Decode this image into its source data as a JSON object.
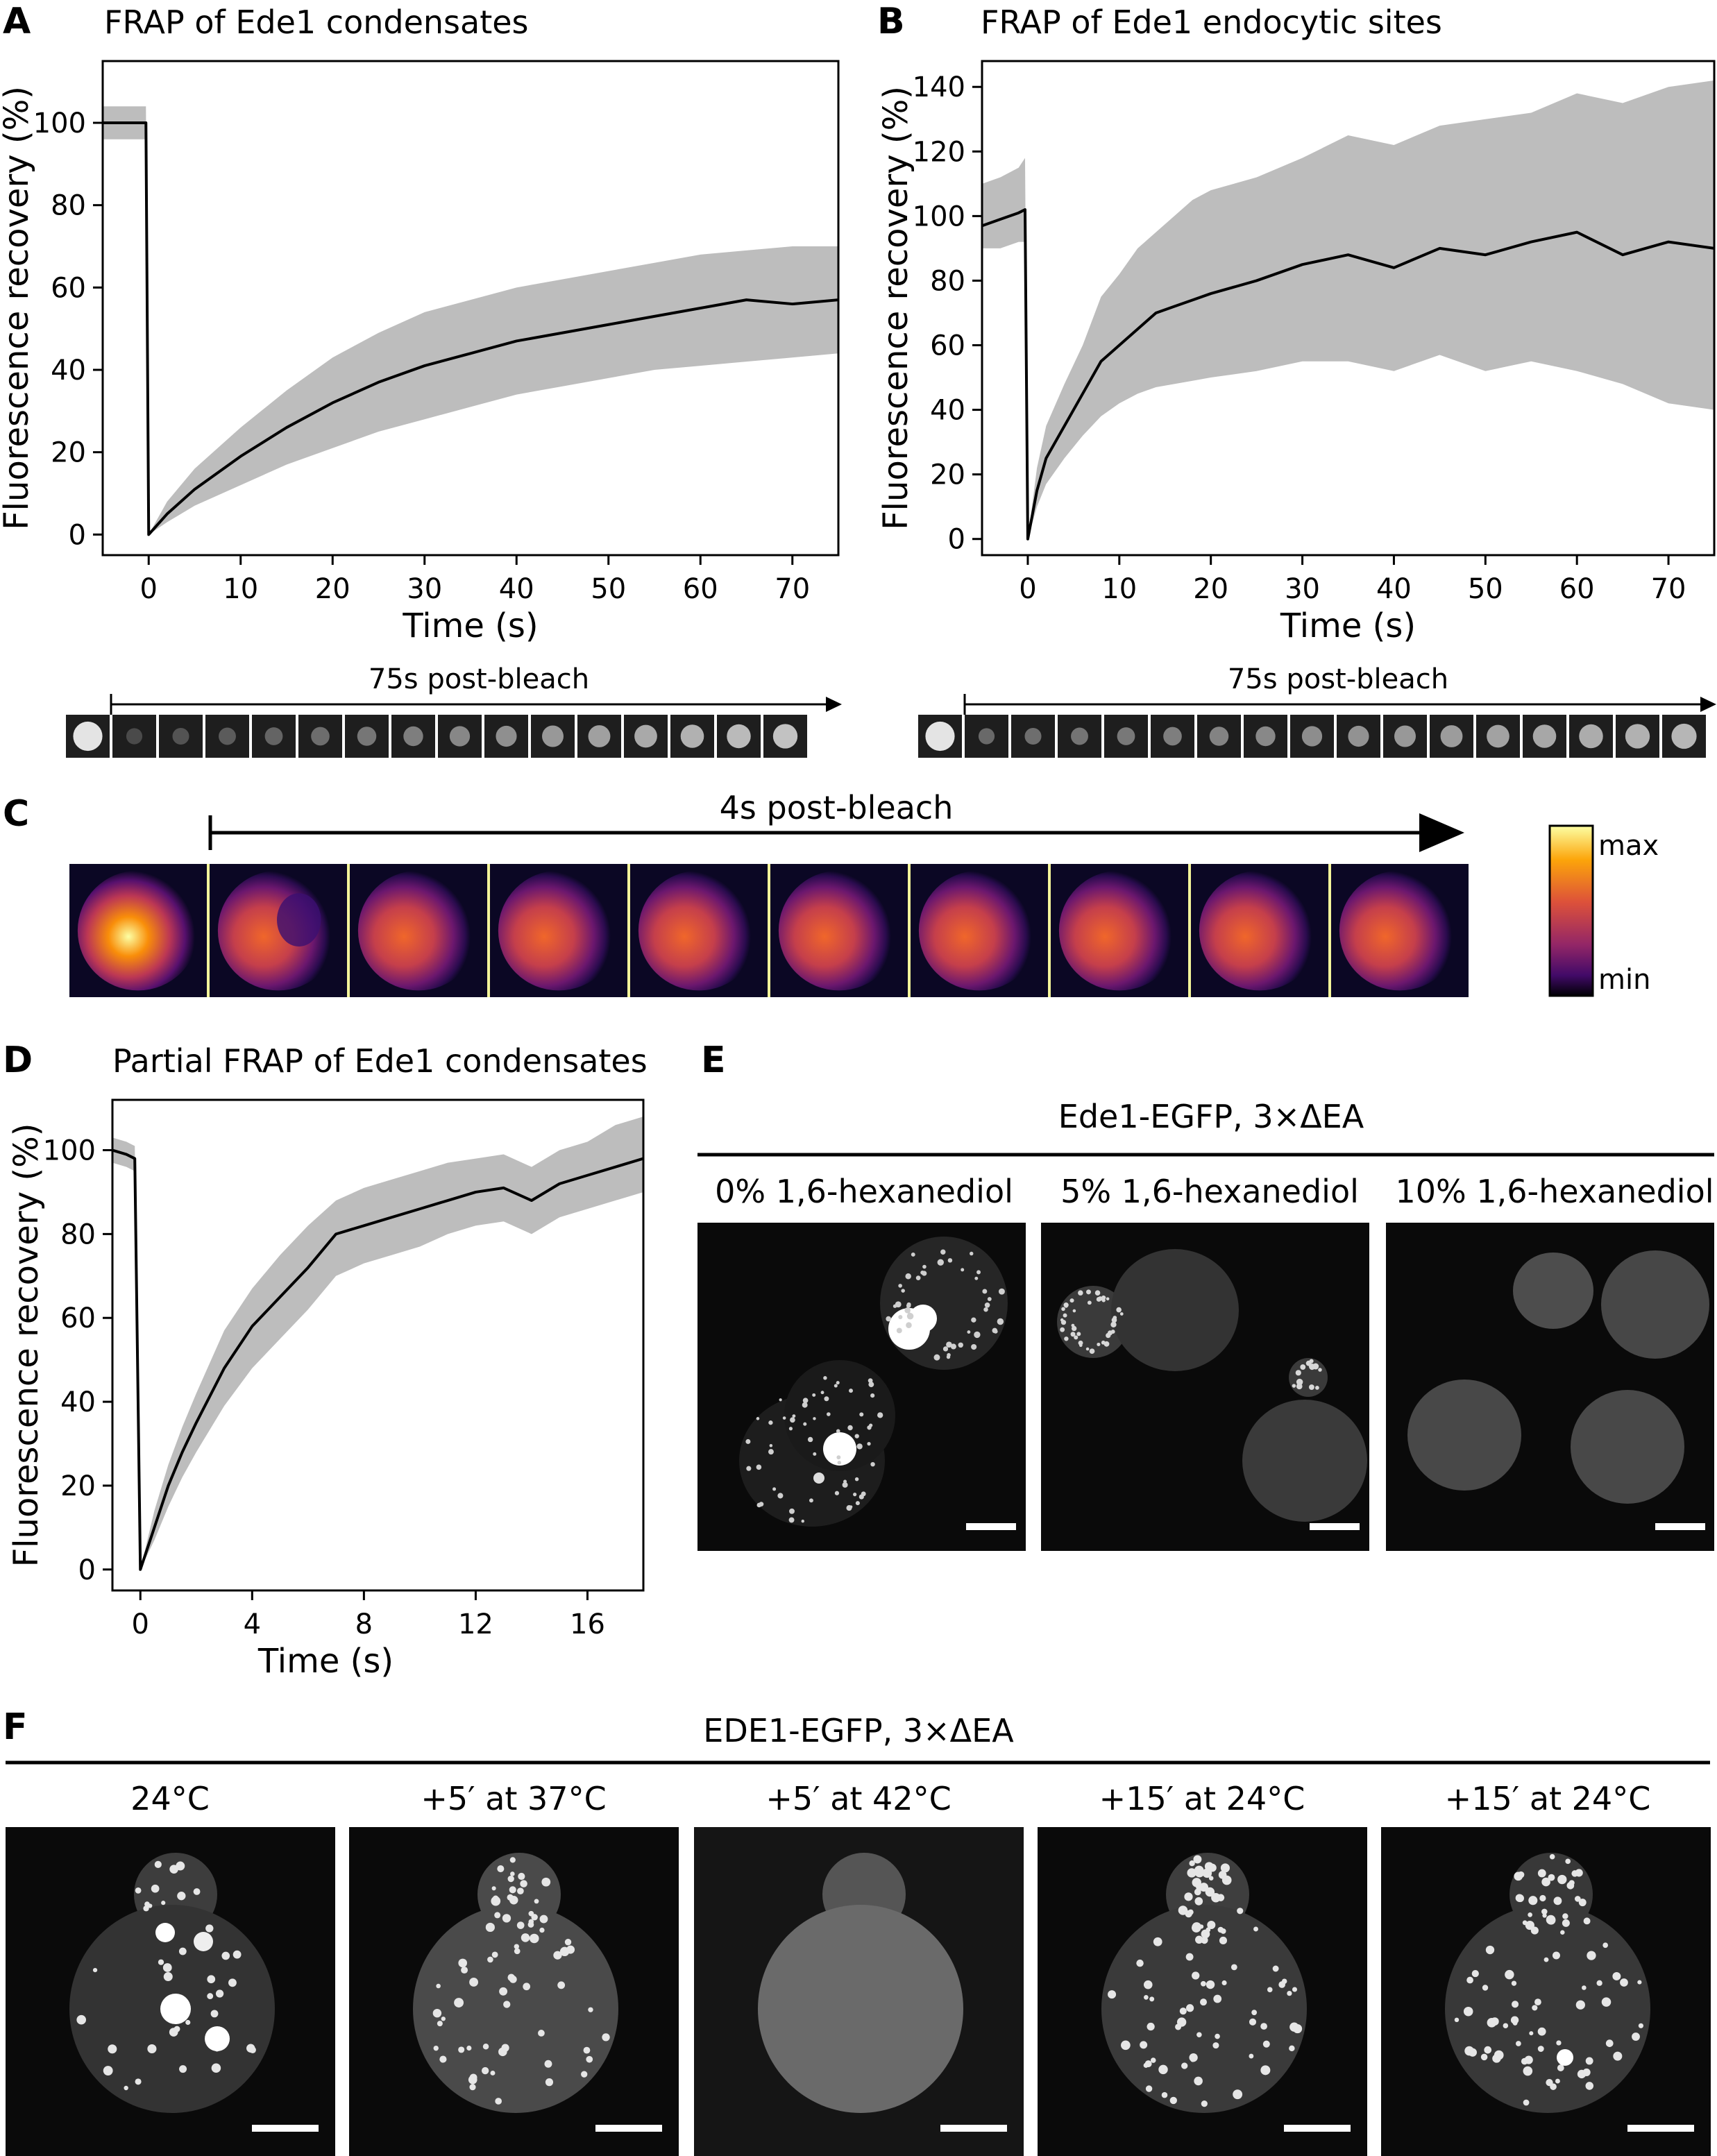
{
  "panels": {
    "A": {
      "letter": "A",
      "title": "FRAP of Ede1 condensates",
      "strip_label": "75s post-bleach"
    },
    "B": {
      "letter": "B",
      "title": "FRAP of Ede1 endocytic sites",
      "strip_label": "75s post-bleach"
    },
    "C": {
      "letter": "C",
      "arrow_label": "4s post-bleach",
      "colorbar_max": "max",
      "colorbar_min": "min"
    },
    "D": {
      "letter": "D",
      "title": "Partial FRAP of Ede1 condensates"
    },
    "E": {
      "letter": "E",
      "header": "Ede1-EGFP, 3×ΔEA",
      "conditions": [
        "0% 1,6-hexanediol",
        "5% 1,6-hexanediol",
        "10% 1,6-hexanediol"
      ]
    },
    "F": {
      "letter": "F",
      "header": "EDE1-EGFP, 3×ΔEA",
      "conditions": [
        "24°C",
        "+5′ at 37°C",
        "+5′ at 42°C",
        "+15′ at 24°C",
        "+15′ at 24°C"
      ]
    }
  },
  "chart_data": [
    {
      "id": "A",
      "type": "line",
      "title": "FRAP of Ede1 condensates",
      "xlabel": "Time (s)",
      "ylabel": "Fluorescence recovery (%)",
      "xlim": [
        -5,
        75
      ],
      "ylim": [
        -5,
        115
      ],
      "xticks": [
        0,
        10,
        20,
        30,
        40,
        50,
        60,
        70
      ],
      "yticks": [
        0,
        20,
        40,
        60,
        80,
        100
      ],
      "series": [
        {
          "x": [
            -5,
            -3,
            -1,
            -0.3,
            0,
            2,
            5,
            10,
            15,
            20,
            25,
            30,
            35,
            40,
            45,
            50,
            55,
            60,
            65,
            70,
            75
          ],
          "y": [
            100,
            100,
            100,
            100,
            0,
            5,
            11,
            19,
            26,
            32,
            37,
            41,
            44,
            47,
            49,
            51,
            53,
            55,
            57,
            56,
            57
          ],
          "lower": [
            96,
            96,
            96,
            96,
            0,
            3,
            7,
            12,
            17,
            21,
            25,
            28,
            31,
            34,
            36,
            38,
            40,
            41,
            42,
            43,
            44
          ],
          "upper": [
            104,
            104,
            104,
            104,
            0,
            8,
            16,
            26,
            35,
            43,
            49,
            54,
            57,
            60,
            62,
            64,
            66,
            68,
            69,
            70,
            70
          ]
        }
      ]
    },
    {
      "id": "B",
      "type": "line",
      "title": "FRAP of Ede1 endocytic sites",
      "xlabel": "Time (s)",
      "ylabel": "Fluorescence recovery (%)",
      "xlim": [
        -5,
        75
      ],
      "ylim": [
        -5,
        148
      ],
      "xticks": [
        0,
        10,
        20,
        30,
        40,
        50,
        60,
        70
      ],
      "yticks": [
        0,
        20,
        40,
        60,
        80,
        100,
        120,
        140
      ],
      "series": [
        {
          "x": [
            -5,
            -3,
            -1,
            -0.3,
            0,
            1,
            2,
            4,
            6,
            8,
            10,
            12,
            14,
            16,
            18,
            20,
            25,
            30,
            35,
            40,
            45,
            50,
            55,
            60,
            65,
            70,
            75
          ],
          "y": [
            97,
            99,
            101,
            102,
            0,
            15,
            25,
            35,
            45,
            55,
            60,
            65,
            70,
            72,
            74,
            76,
            80,
            85,
            88,
            84,
            90,
            88,
            92,
            95,
            88,
            92,
            90
          ],
          "lower": [
            90,
            90,
            92,
            92,
            0,
            10,
            17,
            25,
            32,
            38,
            42,
            45,
            47,
            48,
            49,
            50,
            52,
            55,
            55,
            52,
            57,
            52,
            55,
            52,
            48,
            42,
            40
          ],
          "upper": [
            110,
            112,
            115,
            118,
            0,
            22,
            35,
            48,
            60,
            75,
            82,
            90,
            95,
            100,
            105,
            108,
            112,
            118,
            125,
            122,
            128,
            130,
            132,
            138,
            135,
            140,
            142
          ]
        }
      ]
    },
    {
      "id": "D",
      "type": "line",
      "title": "Partial FRAP of Ede1 condensates",
      "xlabel": "Time (s)",
      "ylabel": "Fluorescence recovery (%)",
      "xlim": [
        -1,
        18
      ],
      "ylim": [
        -5,
        112
      ],
      "xticks": [
        0,
        4,
        8,
        12,
        16
      ],
      "yticks": [
        0,
        20,
        40,
        60,
        80,
        100
      ],
      "series": [
        {
          "x": [
            -1,
            -0.5,
            -0.2,
            0,
            0.5,
            1,
            1.5,
            2,
            3,
            4,
            5,
            6,
            7,
            8,
            9,
            10,
            11,
            12,
            13,
            14,
            15,
            16,
            17,
            18
          ],
          "y": [
            100,
            99,
            98,
            0,
            10,
            20,
            28,
            35,
            48,
            58,
            65,
            72,
            80,
            82,
            84,
            86,
            88,
            90,
            91,
            88,
            92,
            94,
            96,
            98
          ],
          "lower": [
            97,
            96,
            95,
            0,
            7,
            15,
            22,
            28,
            39,
            48,
            55,
            62,
            70,
            73,
            75,
            77,
            80,
            82,
            83,
            80,
            84,
            86,
            88,
            90
          ],
          "upper": [
            103,
            102,
            101,
            0,
            14,
            25,
            34,
            42,
            57,
            67,
            75,
            82,
            88,
            91,
            93,
            95,
            97,
            98,
            99,
            96,
            100,
            102,
            106,
            108
          ]
        }
      ]
    }
  ]
}
